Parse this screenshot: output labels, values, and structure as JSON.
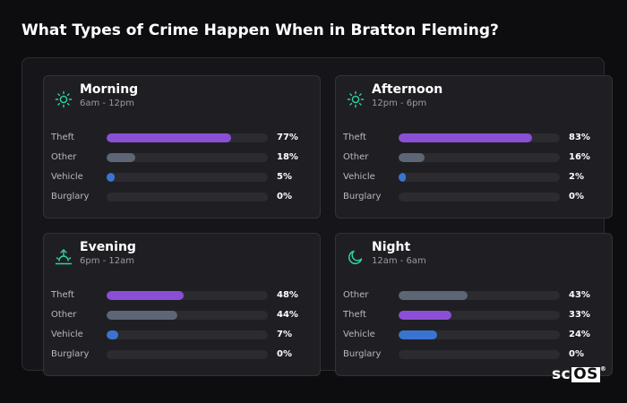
{
  "title": "What Types of Crime Happen When in Bratton Fleming?",
  "colors": {
    "Theft": "#8b4fd6",
    "Other": "#5d6675",
    "Vehicle": "#3a74d0",
    "Burglary": "#e05a5a",
    "icon": "#2fd3a6"
  },
  "logo": {
    "prefix": "sc",
    "box": "OS",
    "mark": "®"
  },
  "chart_data": [
    {
      "type": "bar",
      "title": "Morning",
      "subtitle": "6am - 12pm",
      "icon": "sun-icon",
      "categories": [
        "Theft",
        "Other",
        "Vehicle",
        "Burglary"
      ],
      "values": [
        77,
        18,
        5,
        0
      ],
      "labels": [
        "77%",
        "18%",
        "5%",
        "0%"
      ],
      "ylim": [
        0,
        100
      ]
    },
    {
      "type": "bar",
      "title": "Afternoon",
      "subtitle": "12pm - 6pm",
      "icon": "sun-icon",
      "categories": [
        "Theft",
        "Other",
        "Vehicle",
        "Burglary"
      ],
      "values": [
        83,
        16,
        2,
        0
      ],
      "labels": [
        "83%",
        "16%",
        "2%",
        "0%"
      ],
      "ylim": [
        0,
        100
      ]
    },
    {
      "type": "bar",
      "title": "Evening",
      "subtitle": "6pm - 12am",
      "icon": "sunset-icon",
      "categories": [
        "Theft",
        "Other",
        "Vehicle",
        "Burglary"
      ],
      "values": [
        48,
        44,
        7,
        0
      ],
      "labels": [
        "48%",
        "44%",
        "7%",
        "0%"
      ],
      "ylim": [
        0,
        100
      ]
    },
    {
      "type": "bar",
      "title": "Night",
      "subtitle": "12am - 6am",
      "icon": "moon-icon",
      "categories": [
        "Other",
        "Theft",
        "Vehicle",
        "Burglary"
      ],
      "values": [
        43,
        33,
        24,
        0
      ],
      "labels": [
        "43%",
        "33%",
        "24%",
        "0%"
      ],
      "ylim": [
        0,
        100
      ]
    }
  ]
}
